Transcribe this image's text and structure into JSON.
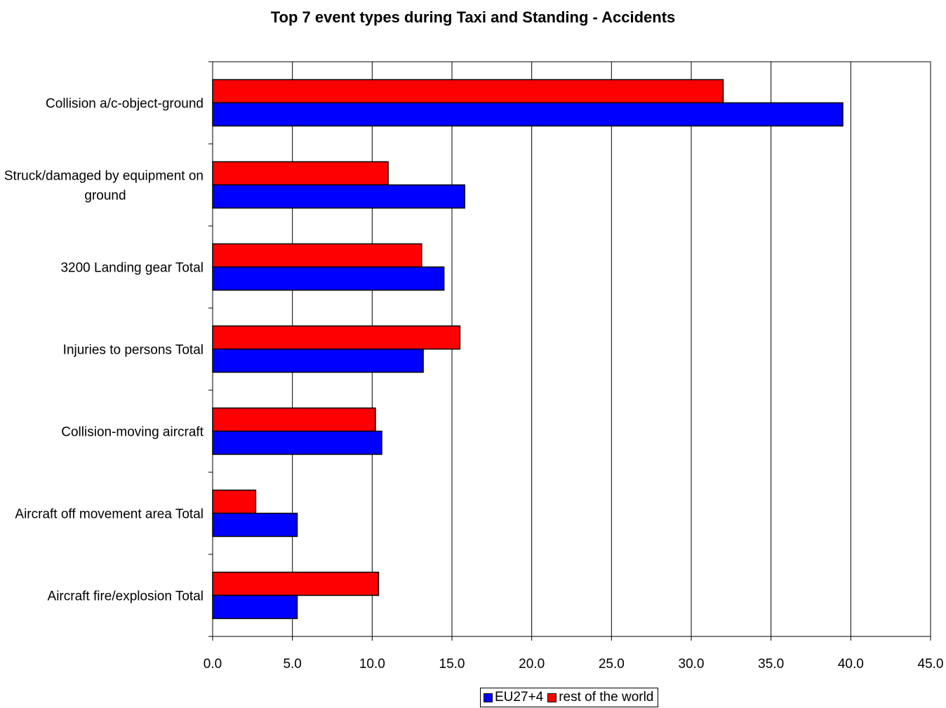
{
  "chart_data": {
    "type": "bar",
    "orientation": "horizontal",
    "title": "Top 7 event types during Taxi and Standing - Accidents",
    "categories": [
      "Collision a/c-object-ground",
      "Struck/damaged by equipment on ground",
      "3200 Landing gear Total",
      "Injuries to persons Total",
      "Collision-moving aircraft",
      "Aircraft off movement area Total",
      "Aircraft fire/explosion Total"
    ],
    "series": [
      {
        "name": "EU27+4",
        "color": "#0000ff",
        "values": [
          39.5,
          15.8,
          14.5,
          13.2,
          10.6,
          5.3,
          5.3
        ]
      },
      {
        "name": "rest of the world",
        "color": "#ff0000",
        "values": [
          32.0,
          11.0,
          13.1,
          15.5,
          10.2,
          2.7,
          10.4
        ]
      }
    ],
    "xlim": [
      0,
      45
    ],
    "xticks": [
      "0.0",
      "5.0",
      "10.0",
      "15.0",
      "20.0",
      "25.0",
      "30.0",
      "35.0",
      "40.0",
      "45.0"
    ],
    "grid": "vertical",
    "legend": "bottom"
  }
}
